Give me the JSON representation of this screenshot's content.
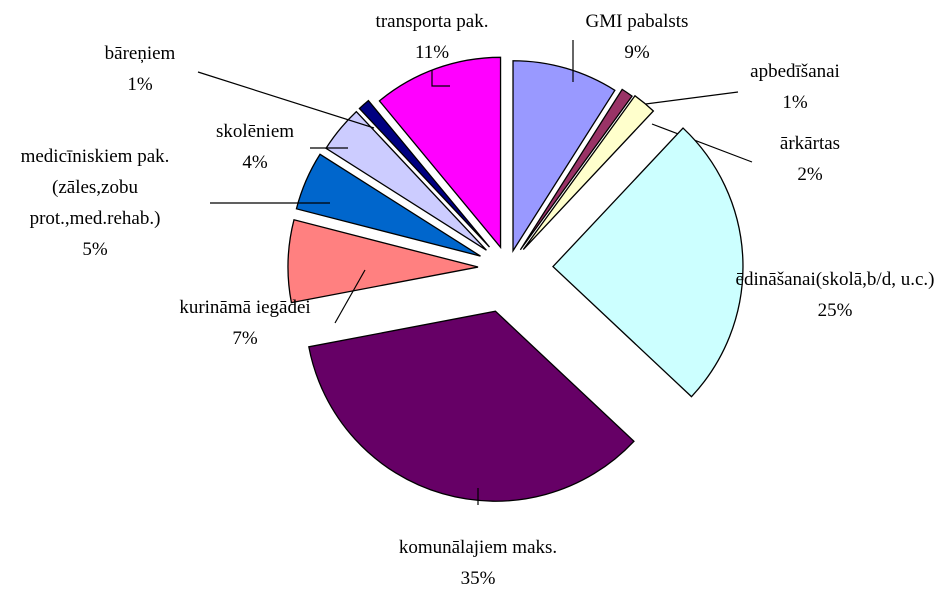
{
  "chart_data": {
    "type": "pie",
    "categories": [
      "GMI pabalsts",
      "apbedīšanai",
      "ārkārtas",
      "ēdināšanai(skolā,b/d, u.c.)",
      "komunālajiem maks.",
      "kurināmā iegādei",
      "medicīniskiem pak.(zāles,zobu prot.,med.rehab.)",
      "skolēniem",
      "bāreņiem",
      "transporta pak."
    ],
    "values": [
      9,
      1,
      2,
      25,
      35,
      7,
      5,
      4,
      1,
      11
    ],
    "value_labels": [
      "9%",
      "1%",
      "2%",
      "25%",
      "35%",
      "7%",
      "5%",
      "4%",
      "1%",
      "11%"
    ],
    "colors": [
      "#9999ff",
      "#993366",
      "#ffffcc",
      "#ccffff",
      "#660066",
      "#ff8080",
      "#0066cc",
      "#ccccff",
      "#000080",
      "#ff00ff"
    ]
  }
}
